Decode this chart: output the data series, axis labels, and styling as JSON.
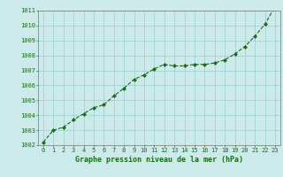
{
  "x": [
    0,
    1,
    2,
    3,
    4,
    5,
    6,
    7,
    8,
    9,
    10,
    11,
    12,
    13,
    14,
    15,
    16,
    17,
    18,
    19,
    20,
    21,
    22,
    23
  ],
  "y": [
    1002.2,
    1003.0,
    1003.2,
    1003.7,
    1004.1,
    1004.5,
    1004.7,
    1005.3,
    1005.8,
    1006.4,
    1006.7,
    1007.1,
    1007.4,
    1007.3,
    1007.3,
    1007.4,
    1007.4,
    1007.5,
    1007.7,
    1008.1,
    1008.6,
    1009.3,
    1010.1,
    1011.3
  ],
  "line_color": "#1a6b1a",
  "marker": "D",
  "marker_size": 2.0,
  "bg_color": "#cceaea",
  "grid_color": "#99cccc",
  "xlabel": "Graphe pression niveau de la mer (hPa)",
  "xlabel_color": "#1a6b1a",
  "tick_color": "#1a6b1a",
  "ylim": [
    1002,
    1011
  ],
  "xlim": [
    -0.5,
    23.5
  ],
  "yticks": [
    1002,
    1003,
    1004,
    1005,
    1006,
    1007,
    1008,
    1009,
    1010,
    1011
  ],
  "xticks": [
    0,
    1,
    2,
    3,
    4,
    5,
    6,
    7,
    8,
    9,
    10,
    11,
    12,
    13,
    14,
    15,
    16,
    17,
    18,
    19,
    20,
    21,
    22,
    23
  ],
  "ytick_fontsize": 5.0,
  "xtick_fontsize": 5.0,
  "xlabel_fontsize": 6.0,
  "linewidth": 0.8
}
